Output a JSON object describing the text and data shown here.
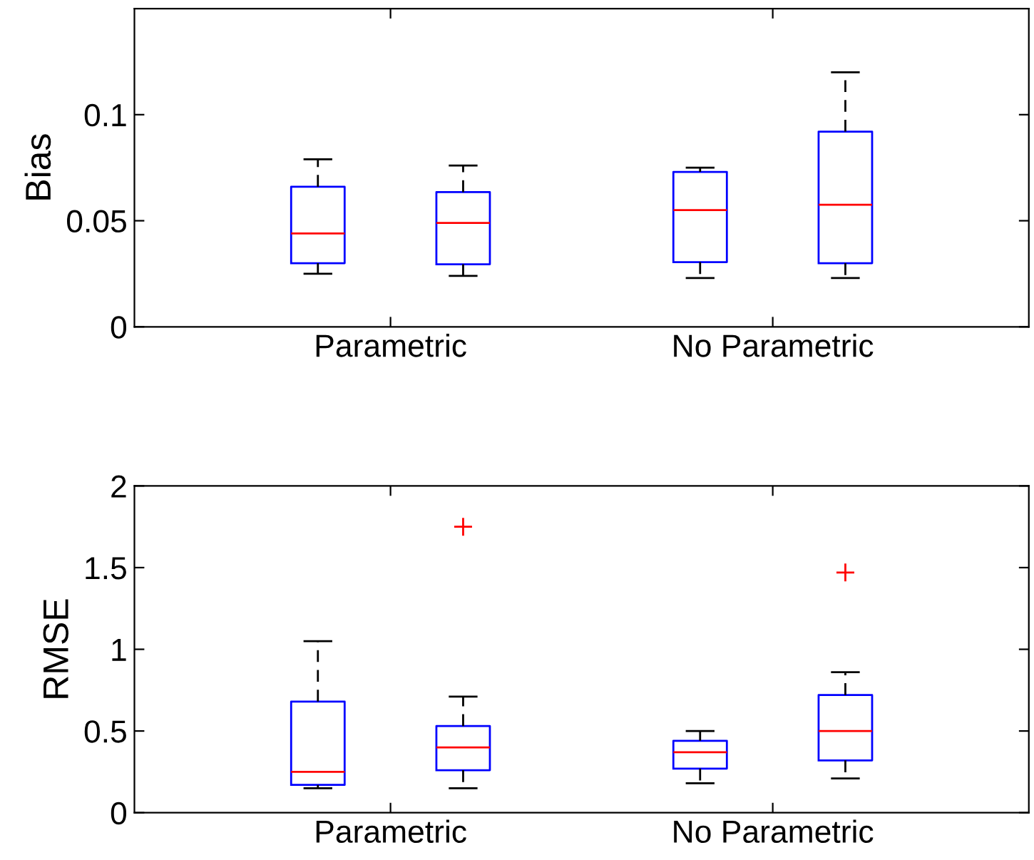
{
  "chart_data": [
    {
      "type": "box",
      "ylabel": "Bias",
      "categories": [
        "Parametric",
        "No Parametric"
      ],
      "ylim": [
        0,
        0.15
      ],
      "yticks": [
        0,
        0.05,
        0.1
      ],
      "grid": false,
      "legend": false,
      "series": [
        {
          "color": "#0000ff",
          "boxes": [
            {
              "low": 0.025,
              "q1": 0.03,
              "median": 0.044,
              "q3": 0.066,
              "high": 0.079
            },
            {
              "low": 0.023,
              "q1": 0.0305,
              "median": 0.055,
              "q3": 0.073,
              "high": 0.075
            }
          ]
        },
        {
          "color": "#0000ff",
          "boxes": [
            {
              "low": 0.024,
              "q1": 0.0295,
              "median": 0.049,
              "q3": 0.0635,
              "high": 0.076
            },
            {
              "low": 0.023,
              "q1": 0.03,
              "median": 0.0575,
              "q3": 0.092,
              "high": 0.12
            }
          ]
        }
      ]
    },
    {
      "type": "box",
      "ylabel": "RMSE",
      "categories": [
        "Parametric",
        "No Parametric"
      ],
      "ylim": [
        0,
        2
      ],
      "yticks": [
        0,
        0.5,
        1,
        1.5,
        2
      ],
      "grid": false,
      "legend": false,
      "series": [
        {
          "color": "#0000ff",
          "boxes": [
            {
              "low": 0.15,
              "q1": 0.17,
              "median": 0.25,
              "q3": 0.68,
              "high": 1.05
            },
            {
              "low": 0.18,
              "q1": 0.27,
              "median": 0.37,
              "q3": 0.44,
              "high": 0.5
            }
          ]
        },
        {
          "color": "#0000ff",
          "boxes": [
            {
              "low": 0.15,
              "q1": 0.26,
              "median": 0.4,
              "q3": 0.53,
              "high": 0.71,
              "outliers": [
                1.75
              ]
            },
            {
              "low": 0.21,
              "q1": 0.32,
              "median": 0.5,
              "q3": 0.72,
              "high": 0.86,
              "outliers": [
                1.47
              ]
            }
          ]
        }
      ]
    }
  ]
}
